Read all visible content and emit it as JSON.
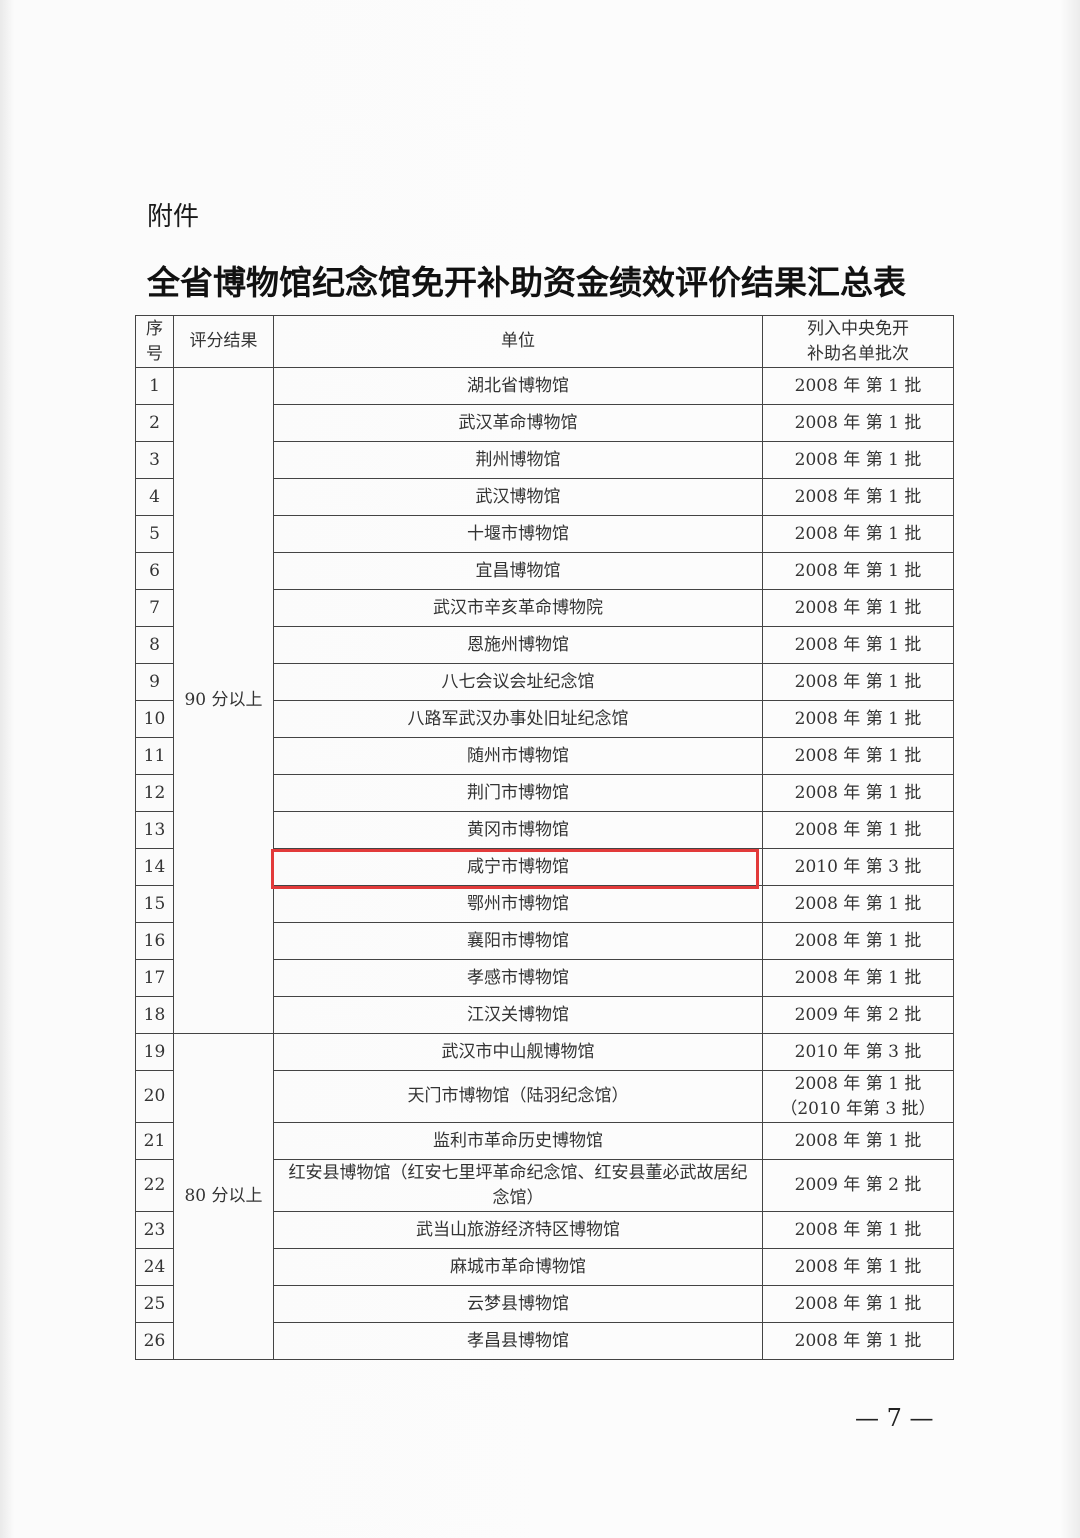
{
  "attachment_label": "附件",
  "title": "全省博物馆纪念馆免开补助资金绩效评价结果汇总表",
  "table": {
    "headers": [
      "序号",
      "评分结果",
      "单位",
      "列入中央免开补助名单批次"
    ],
    "groups": [
      {
        "label": "90 分以上",
        "rows": 18
      },
      {
        "label": "80 分以上",
        "rows": 8
      }
    ],
    "rows": [
      {
        "no": "1",
        "unit": "湖北省博物馆",
        "batch": "2008 年 第 1 批"
      },
      {
        "no": "2",
        "unit": "武汉革命博物馆",
        "batch": "2008 年 第 1 批"
      },
      {
        "no": "3",
        "unit": "荆州博物馆",
        "batch": "2008 年 第 1 批"
      },
      {
        "no": "4",
        "unit": "武汉博物馆",
        "batch": "2008 年 第 1 批"
      },
      {
        "no": "5",
        "unit": "十堰市博物馆",
        "batch": "2008 年 第 1 批"
      },
      {
        "no": "6",
        "unit": "宜昌博物馆",
        "batch": "2008 年 第 1 批"
      },
      {
        "no": "7",
        "unit": "武汉市辛亥革命博物院",
        "batch": "2008 年 第 1 批"
      },
      {
        "no": "8",
        "unit": "恩施州博物馆",
        "batch": "2008 年 第 1 批"
      },
      {
        "no": "9",
        "unit": "八七会议会址纪念馆",
        "batch": "2008 年 第 1 批"
      },
      {
        "no": "10",
        "unit": "八路军武汉办事处旧址纪念馆",
        "batch": "2008 年 第 1 批"
      },
      {
        "no": "11",
        "unit": "随州市博物馆",
        "batch": "2008 年 第 1 批"
      },
      {
        "no": "12",
        "unit": "荆门市博物馆",
        "batch": "2008 年 第 1 批"
      },
      {
        "no": "13",
        "unit": "黄冈市博物馆",
        "batch": "2008 年 第 1 批"
      },
      {
        "no": "14",
        "unit": "咸宁市博物馆",
        "batch": "2010 年 第 3 批",
        "highlighted": true
      },
      {
        "no": "15",
        "unit": "鄂州市博物馆",
        "batch": "2008 年 第 1 批"
      },
      {
        "no": "16",
        "unit": "襄阳市博物馆",
        "batch": "2008 年 第 1 批"
      },
      {
        "no": "17",
        "unit": "孝感市博物馆",
        "batch": "2008 年 第 1 批"
      },
      {
        "no": "18",
        "unit": "江汉关博物馆",
        "batch": "2009 年 第 2 批"
      },
      {
        "no": "19",
        "unit": "武汉市中山舰博物馆",
        "batch": "2010 年 第 3 批"
      },
      {
        "no": "20",
        "unit": "天门市博物馆（陆羽纪念馆）",
        "batch": "2008 年 第 1 批\n（2010 年第 3 批）"
      },
      {
        "no": "21",
        "unit": "监利市革命历史博物馆",
        "batch": "2008 年 第 1 批"
      },
      {
        "no": "22",
        "unit": "红安县博物馆（红安七里坪革命纪念馆、红安县董必武故居纪念馆）",
        "batch": "2009 年 第 2 批"
      },
      {
        "no": "23",
        "unit": "武当山旅游经济特区博物馆",
        "batch": "2008 年 第 1 批"
      },
      {
        "no": "24",
        "unit": "麻城市革命博物馆",
        "batch": "2008 年 第 1 批"
      },
      {
        "no": "25",
        "unit": "云梦县博物馆",
        "batch": "2008 年 第 1 批"
      },
      {
        "no": "26",
        "unit": "孝昌县博物馆",
        "batch": "2008 年 第 1 批"
      }
    ]
  },
  "highlight_color": "#e23a3a",
  "page_number": "— 7 —"
}
